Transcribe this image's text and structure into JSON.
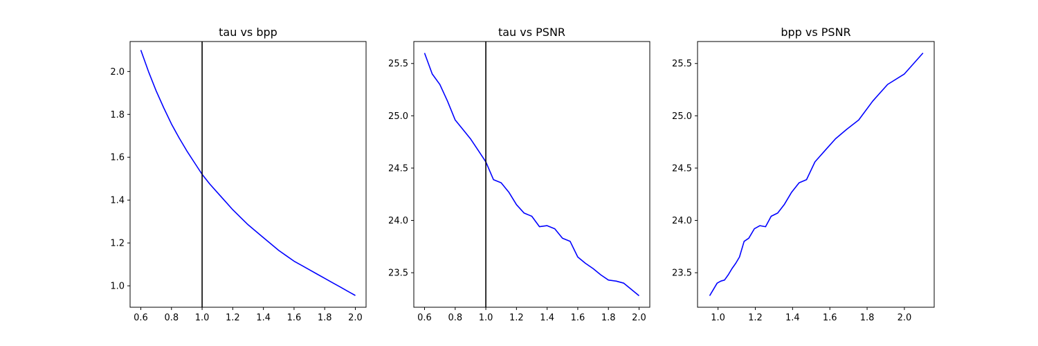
{
  "chart_data": [
    {
      "type": "line",
      "title": "tau vs bpp",
      "xlabel": "",
      "ylabel": "",
      "xlim": [
        0.53,
        2.07
      ],
      "ylim": [
        0.9,
        2.14
      ],
      "xticks": [
        "0.6",
        "0.8",
        "1.0",
        "1.2",
        "1.4",
        "1.6",
        "1.8",
        "2.0"
      ],
      "yticks": [
        "1.0",
        "1.2",
        "1.4",
        "1.6",
        "1.8",
        "2.0"
      ],
      "grid": false,
      "vline": 1.0,
      "series": [
        {
          "color": "#0000ff",
          "x": [
            0.6,
            0.65,
            0.7,
            0.75,
            0.8,
            0.85,
            0.9,
            0.95,
            1.0,
            1.05,
            1.1,
            1.15,
            1.2,
            1.25,
            1.3,
            1.35,
            1.4,
            1.45,
            1.5,
            1.55,
            1.6,
            1.65,
            1.7,
            1.75,
            1.8,
            1.85,
            1.9,
            1.95,
            2.0
          ],
          "y": [
            2.1,
            2.0,
            1.91,
            1.83,
            1.755,
            1.69,
            1.63,
            1.575,
            1.52,
            1.475,
            1.435,
            1.395,
            1.355,
            1.32,
            1.285,
            1.255,
            1.225,
            1.195,
            1.165,
            1.14,
            1.115,
            1.095,
            1.075,
            1.055,
            1.035,
            1.015,
            0.995,
            0.975,
            0.955
          ]
        }
      ]
    },
    {
      "type": "line",
      "title": "tau vs PSNR",
      "xlabel": "",
      "ylabel": "",
      "xlim": [
        0.53,
        2.07
      ],
      "ylim": [
        23.17,
        25.71
      ],
      "xticks": [
        "0.6",
        "0.8",
        "1.0",
        "1.2",
        "1.4",
        "1.6",
        "1.8",
        "2.0"
      ],
      "yticks": [
        "23.5",
        "24.0",
        "24.5",
        "25.0",
        "25.5"
      ],
      "grid": false,
      "vline": 1.0,
      "series": [
        {
          "color": "#0000ff",
          "x": [
            0.6,
            0.65,
            0.7,
            0.75,
            0.8,
            0.85,
            0.9,
            0.95,
            1.0,
            1.05,
            1.1,
            1.15,
            1.2,
            1.25,
            1.3,
            1.35,
            1.4,
            1.45,
            1.5,
            1.55,
            1.6,
            1.65,
            1.7,
            1.75,
            1.8,
            1.85,
            1.9,
            1.95,
            2.0
          ],
          "y": [
            25.6,
            25.4,
            25.3,
            25.14,
            24.96,
            24.87,
            24.78,
            24.67,
            24.56,
            24.39,
            24.36,
            24.27,
            24.15,
            24.07,
            24.04,
            23.94,
            23.95,
            23.92,
            23.83,
            23.8,
            23.65,
            23.59,
            23.54,
            23.48,
            23.43,
            23.42,
            23.4,
            23.34,
            23.28
          ]
        }
      ]
    },
    {
      "type": "line",
      "title": "bpp vs PSNR",
      "xlabel": "",
      "ylabel": "",
      "xlim": [
        0.89,
        2.16
      ],
      "ylim": [
        23.17,
        25.71
      ],
      "xticks": [
        "1.0",
        "1.2",
        "1.4",
        "1.6",
        "1.8",
        "2.0"
      ],
      "yticks": [
        "23.5",
        "24.0",
        "24.5",
        "25.0",
        "25.5"
      ],
      "grid": false,
      "series": [
        {
          "color": "#0000ff",
          "x": [
            0.955,
            0.975,
            0.995,
            1.015,
            1.035,
            1.055,
            1.075,
            1.095,
            1.115,
            1.14,
            1.165,
            1.195,
            1.225,
            1.255,
            1.285,
            1.32,
            1.355,
            1.395,
            1.435,
            1.475,
            1.52,
            1.575,
            1.63,
            1.69,
            1.755,
            1.83,
            1.91,
            2.0,
            2.1
          ],
          "y": [
            23.28,
            23.34,
            23.4,
            23.42,
            23.43,
            23.48,
            23.54,
            23.59,
            23.65,
            23.8,
            23.83,
            23.92,
            23.95,
            23.94,
            24.04,
            24.07,
            24.15,
            24.27,
            24.36,
            24.39,
            24.56,
            24.67,
            24.78,
            24.87,
            24.96,
            25.14,
            25.3,
            25.4,
            25.6
          ]
        }
      ]
    }
  ]
}
